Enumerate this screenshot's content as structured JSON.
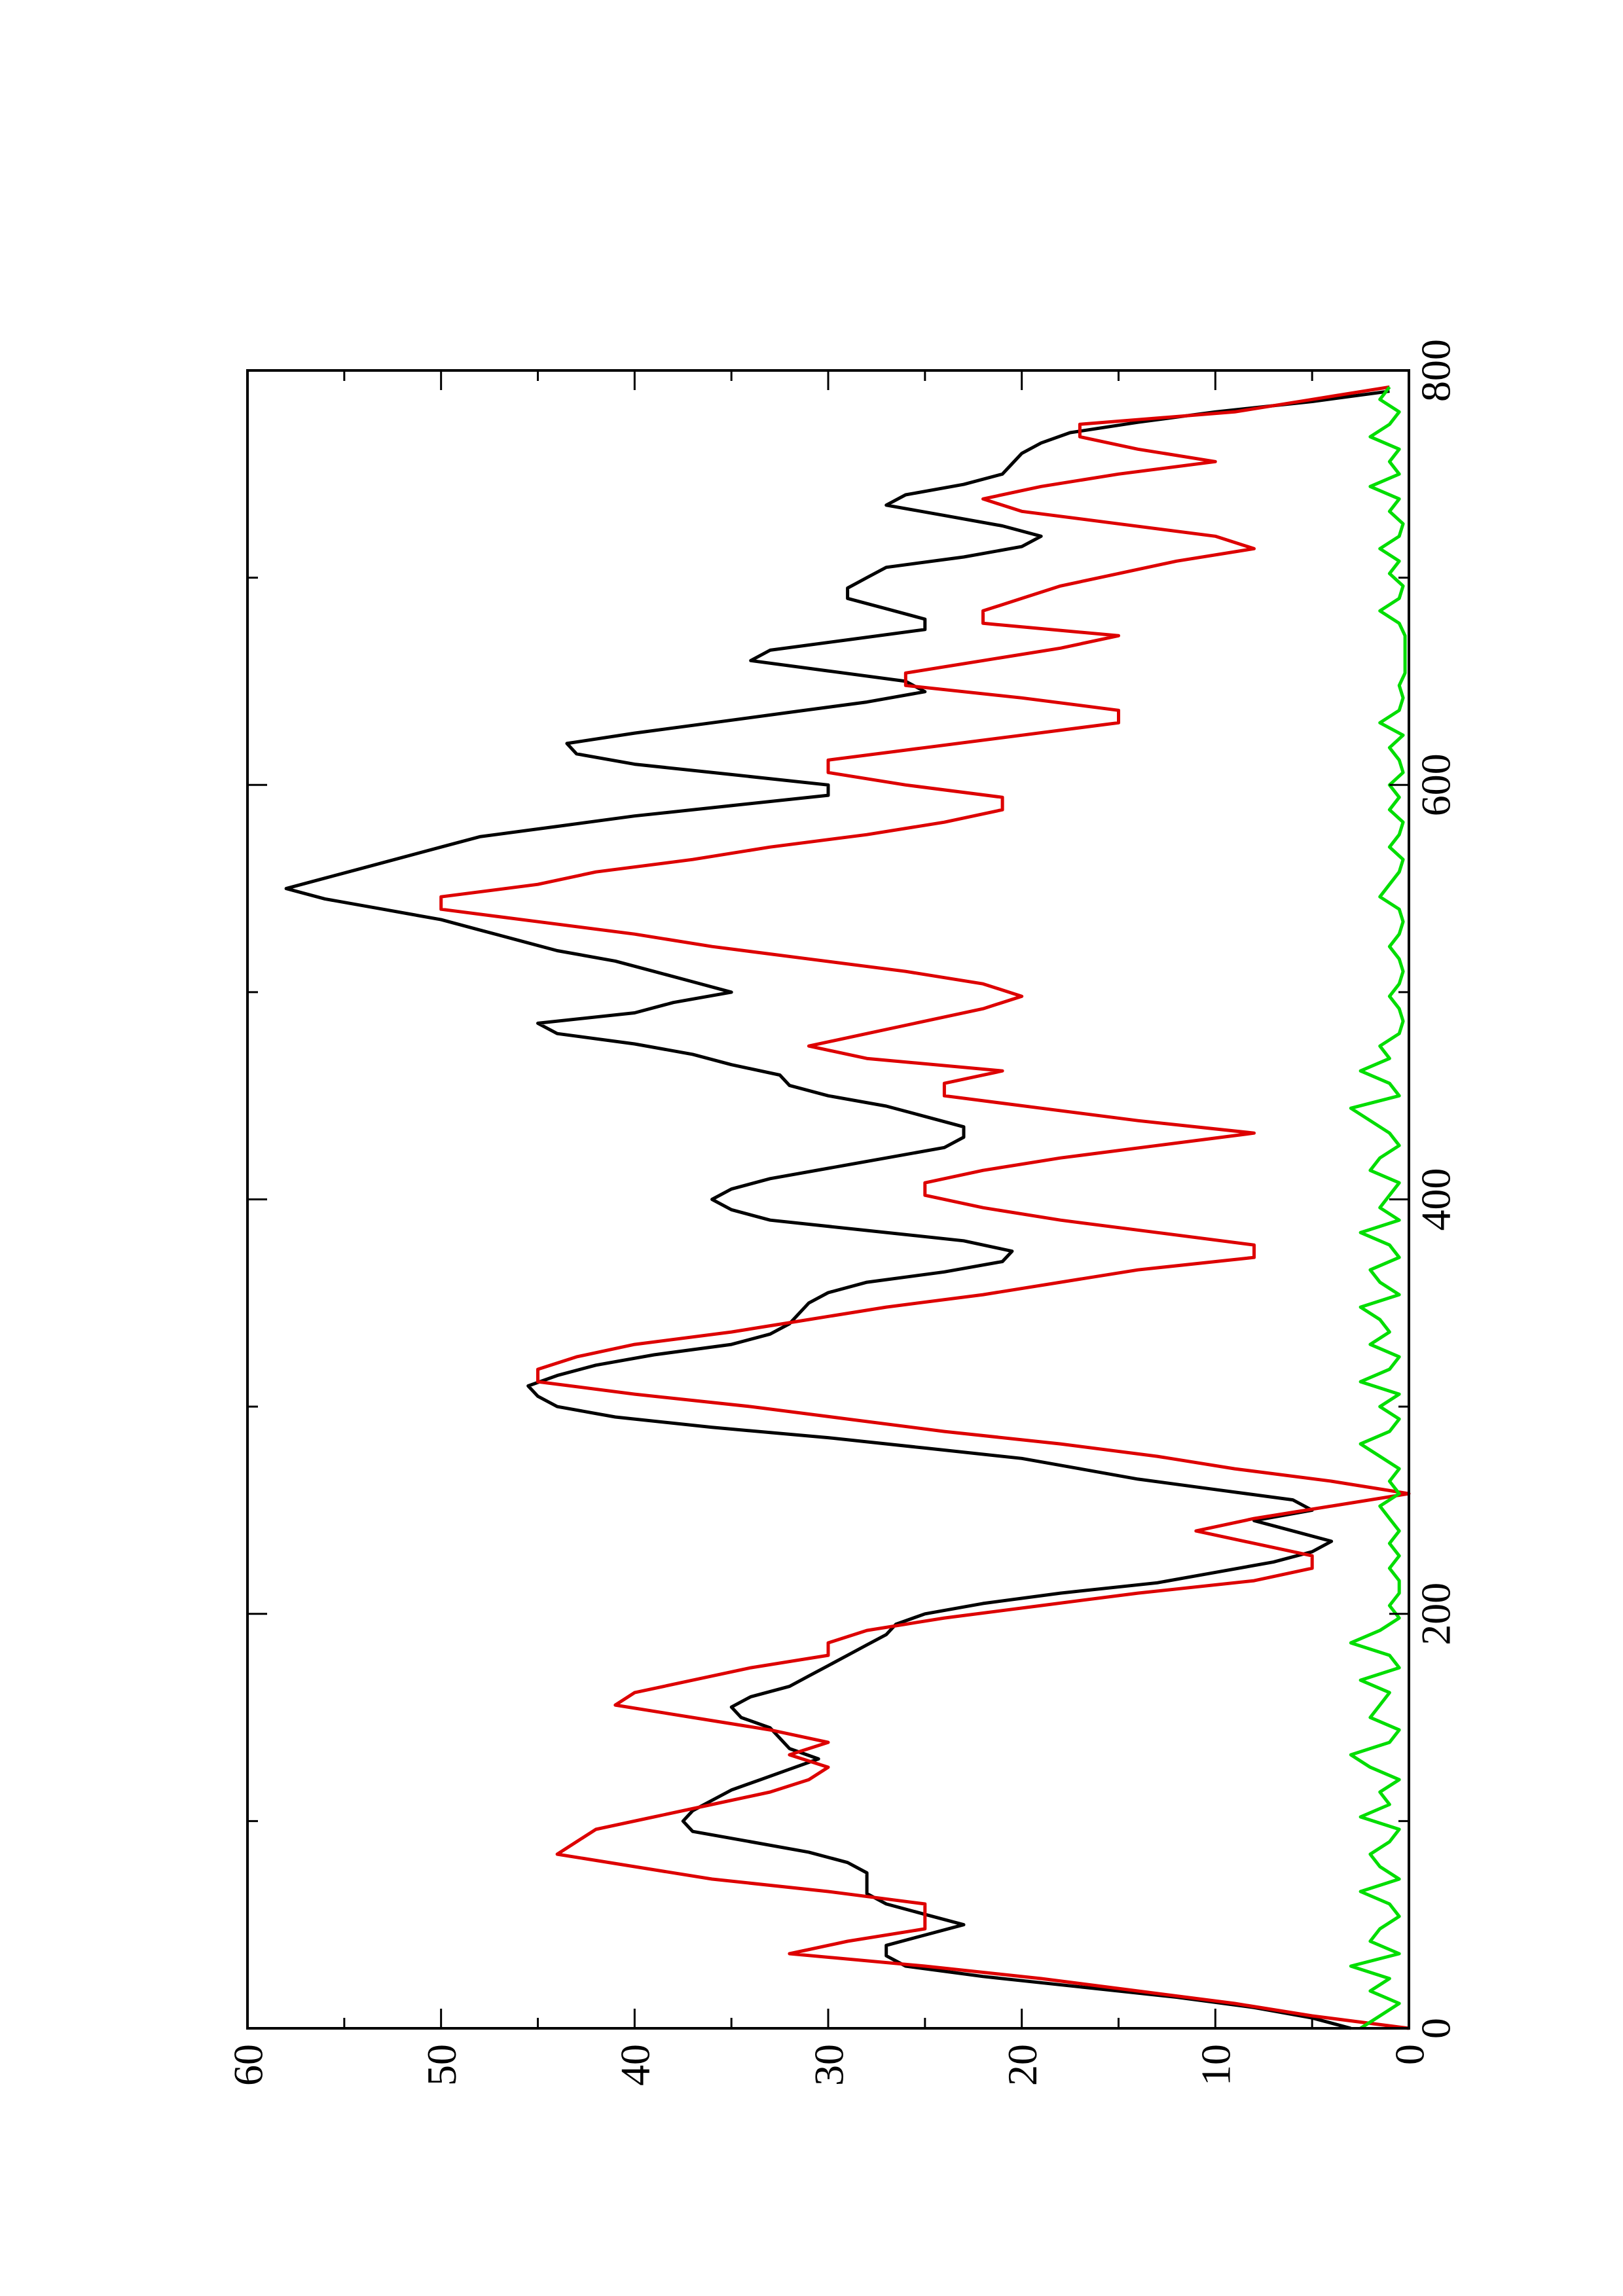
{
  "chart_data": {
    "type": "line",
    "title": "",
    "xlabel": "",
    "ylabel": "",
    "xlim": [
      0,
      800
    ],
    "ylim": [
      0,
      60
    ],
    "orientation": "rotated-90-counterclockwise",
    "grid": false,
    "legend": "none",
    "x_ticks": [
      "0",
      "200",
      "400",
      "600",
      "800"
    ],
    "y_ticks": [
      "0",
      "10",
      "20",
      "30",
      "40",
      "50",
      "60"
    ],
    "series": [
      {
        "color": "#000000",
        "x": [
          0,
          5,
          10,
          15,
          20,
          25,
          30,
          35,
          40,
          45,
          50,
          55,
          60,
          65,
          70,
          75,
          80,
          85,
          90,
          95,
          100,
          105,
          110,
          115,
          120,
          125,
          130,
          135,
          140,
          145,
          150,
          155,
          160,
          165,
          170,
          175,
          180,
          185,
          190,
          195,
          200,
          205,
          210,
          215,
          220,
          225,
          230,
          235,
          240,
          245,
          250,
          255,
          260,
          265,
          270,
          275,
          280,
          285,
          290,
          295,
          300,
          305,
          310,
          315,
          320,
          325,
          330,
          335,
          340,
          345,
          350,
          355,
          360,
          365,
          370,
          375,
          380,
          385,
          390,
          395,
          400,
          405,
          410,
          415,
          420,
          425,
          430,
          435,
          440,
          445,
          450,
          455,
          460,
          465,
          470,
          475,
          480,
          485,
          490,
          495,
          500,
          505,
          510,
          515,
          520,
          525,
          530,
          535,
          540,
          545,
          550,
          555,
          560,
          565,
          570,
          575,
          580,
          585,
          590,
          595,
          600,
          605,
          610,
          615,
          620,
          625,
          630,
          635,
          640,
          645,
          650,
          655,
          660,
          665,
          670,
          675,
          680,
          685,
          690,
          695,
          700,
          705,
          710,
          715,
          720,
          725,
          730,
          735,
          740,
          745,
          750,
          755,
          760,
          765,
          770,
          775,
          780,
          785,
          790
        ],
        "values": [
          3,
          5,
          8,
          12,
          17,
          22,
          26,
          27,
          27,
          25,
          23,
          25,
          27,
          28,
          28,
          28,
          29,
          31,
          34,
          37,
          37.5,
          37,
          36,
          35,
          33.5,
          32,
          30.5,
          32,
          32.5,
          33,
          34.5,
          35,
          34,
          32,
          31,
          30,
          29,
          28,
          27,
          26.5,
          25,
          22,
          18,
          13,
          10,
          7,
          5,
          4,
          6,
          8,
          5,
          6,
          10,
          14,
          17,
          20,
          25,
          30,
          36,
          41,
          44,
          45,
          45.5,
          44,
          42,
          39,
          35,
          33,
          32,
          31.5,
          31,
          30,
          28,
          24,
          21,
          20.5,
          23,
          28,
          33,
          35,
          36,
          35,
          33,
          30,
          27,
          24,
          23,
          23,
          25,
          27,
          30,
          32,
          32.5,
          35,
          37,
          40,
          44,
          45,
          40,
          38,
          35,
          37,
          39,
          41,
          44,
          46,
          48,
          50,
          53,
          56,
          58,
          56,
          54,
          52,
          50,
          48,
          44,
          40,
          35,
          30,
          30,
          35,
          40,
          43,
          43.5,
          40,
          36,
          32,
          28,
          25,
          26,
          30,
          34,
          33,
          29,
          25,
          25,
          27,
          29,
          29,
          28,
          27,
          23,
          20,
          19,
          21,
          24,
          27,
          26,
          23,
          21,
          20.5,
          20,
          19,
          17.5,
          14,
          10,
          5,
          1
        ]
      },
      {
        "color": "#dd0000",
        "x": [
          0,
          6,
          12,
          18,
          24,
          30,
          36,
          42,
          48,
          54,
          60,
          66,
          72,
          78,
          84,
          90,
          96,
          102,
          108,
          114,
          120,
          126,
          132,
          138,
          144,
          150,
          156,
          162,
          168,
          174,
          180,
          186,
          192,
          198,
          204,
          210,
          216,
          222,
          228,
          234,
          240,
          246,
          252,
          258,
          264,
          270,
          276,
          282,
          288,
          294,
          300,
          306,
          312,
          318,
          324,
          330,
          336,
          342,
          348,
          354,
          360,
          366,
          372,
          378,
          384,
          390,
          396,
          402,
          408,
          414,
          420,
          426,
          432,
          438,
          444,
          450,
          456,
          462,
          468,
          474,
          480,
          486,
          492,
          498,
          504,
          510,
          516,
          522,
          528,
          534,
          540,
          546,
          552,
          558,
          564,
          570,
          576,
          582,
          588,
          594,
          600,
          606,
          612,
          618,
          624,
          630,
          636,
          642,
          648,
          654,
          660,
          666,
          672,
          678,
          684,
          690,
          696,
          702,
          708,
          714,
          720,
          726,
          732,
          738,
          744,
          750,
          756,
          762,
          768,
          774,
          780,
          786,
          792
        ],
        "values": [
          0,
          5,
          9,
          14,
          19,
          25,
          32,
          29,
          25,
          25,
          25,
          30,
          36,
          40,
          44,
          43,
          42,
          39,
          36,
          33,
          31,
          30,
          32,
          30,
          33,
          37,
          41,
          40,
          37,
          34,
          30,
          30,
          28,
          24,
          19,
          14,
          8,
          5,
          5,
          8,
          11,
          8,
          4,
          0,
          4,
          9,
          13,
          18,
          24,
          29,
          34,
          40,
          45,
          45,
          43,
          40,
          35,
          31,
          27,
          22,
          18,
          14,
          8,
          8,
          13,
          18,
          22,
          25,
          25,
          22,
          18,
          13,
          8,
          14,
          19,
          24,
          24,
          21,
          28,
          31,
          28,
          25,
          22,
          20,
          22,
          26,
          31,
          36,
          40,
          45,
          50,
          50,
          45,
          42,
          37,
          33,
          28,
          24,
          21,
          21,
          26,
          30,
          30,
          25,
          20,
          15,
          15,
          20,
          26,
          26,
          22,
          18,
          15,
          22,
          22,
          20,
          18,
          15,
          12,
          8,
          10,
          15,
          20,
          22,
          19,
          15,
          10,
          14,
          17,
          17,
          9,
          5,
          1
        ]
      },
      {
        "color": "#00dd00",
        "x": [
          0,
          6,
          12,
          18,
          24,
          30,
          36,
          42,
          48,
          54,
          60,
          66,
          72,
          78,
          84,
          90,
          96,
          102,
          108,
          114,
          120,
          126,
          132,
          138,
          144,
          150,
          156,
          162,
          168,
          174,
          180,
          186,
          192,
          198,
          204,
          210,
          216,
          222,
          228,
          234,
          240,
          246,
          252,
          258,
          264,
          270,
          276,
          282,
          288,
          294,
          300,
          306,
          312,
          318,
          324,
          330,
          336,
          342,
          348,
          354,
          360,
          366,
          372,
          378,
          384,
          390,
          396,
          402,
          408,
          414,
          420,
          426,
          432,
          438,
          444,
          450,
          456,
          462,
          468,
          474,
          480,
          486,
          492,
          498,
          504,
          510,
          516,
          522,
          528,
          534,
          540,
          546,
          552,
          558,
          564,
          570,
          576,
          582,
          588,
          594,
          600,
          606,
          612,
          618,
          624,
          630,
          636,
          642,
          648,
          654,
          660,
          666,
          672,
          678,
          684,
          690,
          696,
          702,
          708,
          714,
          720,
          726,
          732,
          738,
          744,
          750,
          756,
          762,
          768,
          774,
          780,
          786,
          792
        ],
        "values": [
          2.5,
          1.5,
          0.5,
          2,
          1,
          3,
          0.5,
          2,
          1.5,
          0.5,
          1,
          2.5,
          0.5,
          1.5,
          2,
          1,
          0.5,
          2.5,
          1,
          1.5,
          0.5,
          2,
          3,
          1,
          0.5,
          2,
          1.5,
          1,
          2.5,
          0.5,
          1,
          3,
          1.5,
          0.5,
          1,
          0.5,
          0.5,
          1,
          0.5,
          1,
          0.5,
          1,
          1.5,
          0.5,
          1,
          0.5,
          1.5,
          2.5,
          1,
          0.5,
          1.5,
          0.5,
          2.5,
          1,
          0.5,
          2,
          1,
          1.5,
          2.5,
          0.5,
          1.5,
          2,
          0.5,
          1,
          2.5,
          0.5,
          1.5,
          1,
          0.5,
          2,
          1.5,
          0.5,
          1,
          2,
          3,
          0.5,
          1,
          2.5,
          1,
          1.5,
          0.5,
          0.3,
          0.5,
          1,
          0.5,
          0.3,
          0.5,
          1,
          0.5,
          0.3,
          0.5,
          1.5,
          1,
          0.5,
          0.3,
          1,
          0.5,
          0.3,
          1,
          0.5,
          1,
          0.3,
          0.5,
          1,
          0.3,
          1.5,
          0.5,
          0.3,
          0.5,
          0.2,
          0.2,
          0.2,
          0.2,
          0.5,
          1.5,
          0.5,
          0.3,
          1,
          0.5,
          1.5,
          0.5,
          0.3,
          1,
          0.5,
          2,
          0.5,
          1,
          0.5,
          2,
          1,
          0.5,
          1.5,
          1
        ]
      }
    ]
  }
}
